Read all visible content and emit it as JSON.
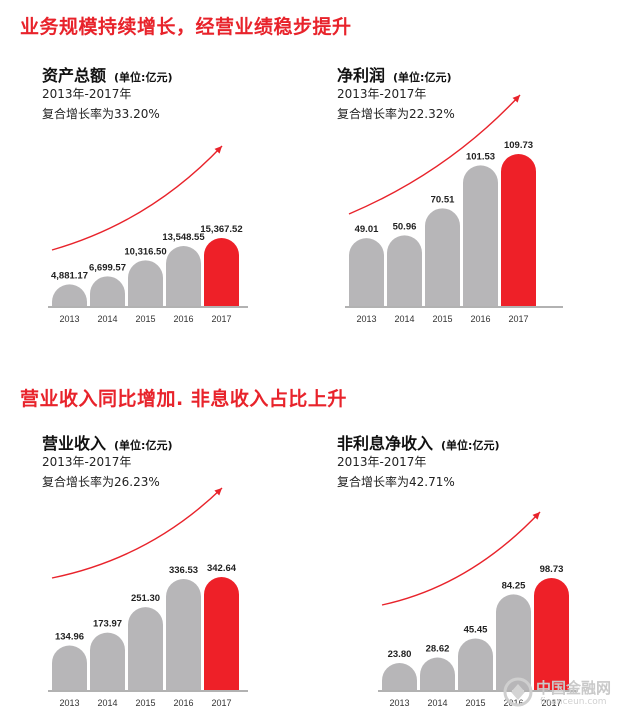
{
  "sections": [
    {
      "title": "业务规模持续增长，经营业绩稳步提升"
    },
    {
      "title": "营业收入同比增加. 非息收入占比上升"
    }
  ],
  "unit_label": "(单位:亿元)",
  "colors": {
    "accent": "#e8232b",
    "bar_grey": "#b7b6b8",
    "bar_red": "#ee2028",
    "axis": "#666666"
  },
  "watermark": {
    "cn": "中国金融网",
    "en": "financeun.com",
    "icon": "watermark-logo-icon"
  },
  "chart_data": [
    {
      "type": "bar",
      "title": "资产总额",
      "period": "2013年-2017年",
      "growth": "复合增长率为33.20%",
      "categories": [
        "2013",
        "2014",
        "2015",
        "2016",
        "2017"
      ],
      "values": [
        4881.17,
        6699.57,
        10316.5,
        13548.55,
        15367.52
      ],
      "value_labels": [
        "4,881.17",
        "6,699.57",
        "10,316.50",
        "13,548.55",
        "15,367.52"
      ],
      "highlight": "2017",
      "trend_arrow": true
    },
    {
      "type": "bar",
      "title": "净利润",
      "period": "2013年-2017年",
      "growth": "复合增长率为22.32%",
      "categories": [
        "2013",
        "2014",
        "2015",
        "2016",
        "2017"
      ],
      "values": [
        49.01,
        50.96,
        70.51,
        101.53,
        109.73
      ],
      "value_labels": [
        "49.01",
        "50.96",
        "70.51",
        "101.53",
        "109.73"
      ],
      "highlight": "2017",
      "trend_arrow": true
    },
    {
      "type": "bar",
      "title": "营业收入",
      "period": "2013年-2017年",
      "growth": "复合增长率为26.23%",
      "categories": [
        "2013",
        "2014",
        "2015",
        "2016",
        "2017"
      ],
      "values": [
        134.96,
        173.97,
        251.3,
        336.53,
        342.64
      ],
      "value_labels": [
        "134.96",
        "173.97",
        "251.30",
        "336.53",
        "342.64"
      ],
      "highlight": "2017",
      "trend_arrow": true
    },
    {
      "type": "bar",
      "title": "非利息净收入",
      "period": "2013年-2017年",
      "growth": "复合增长率为42.71%",
      "categories": [
        "2013",
        "2014",
        "2015",
        "2016",
        "2017"
      ],
      "values": [
        23.8,
        28.62,
        45.45,
        84.25,
        98.73
      ],
      "value_labels": [
        "23.80",
        "28.62",
        "45.45",
        "84.25",
        "98.73"
      ],
      "highlight": "2017",
      "trend_arrow": true
    }
  ]
}
